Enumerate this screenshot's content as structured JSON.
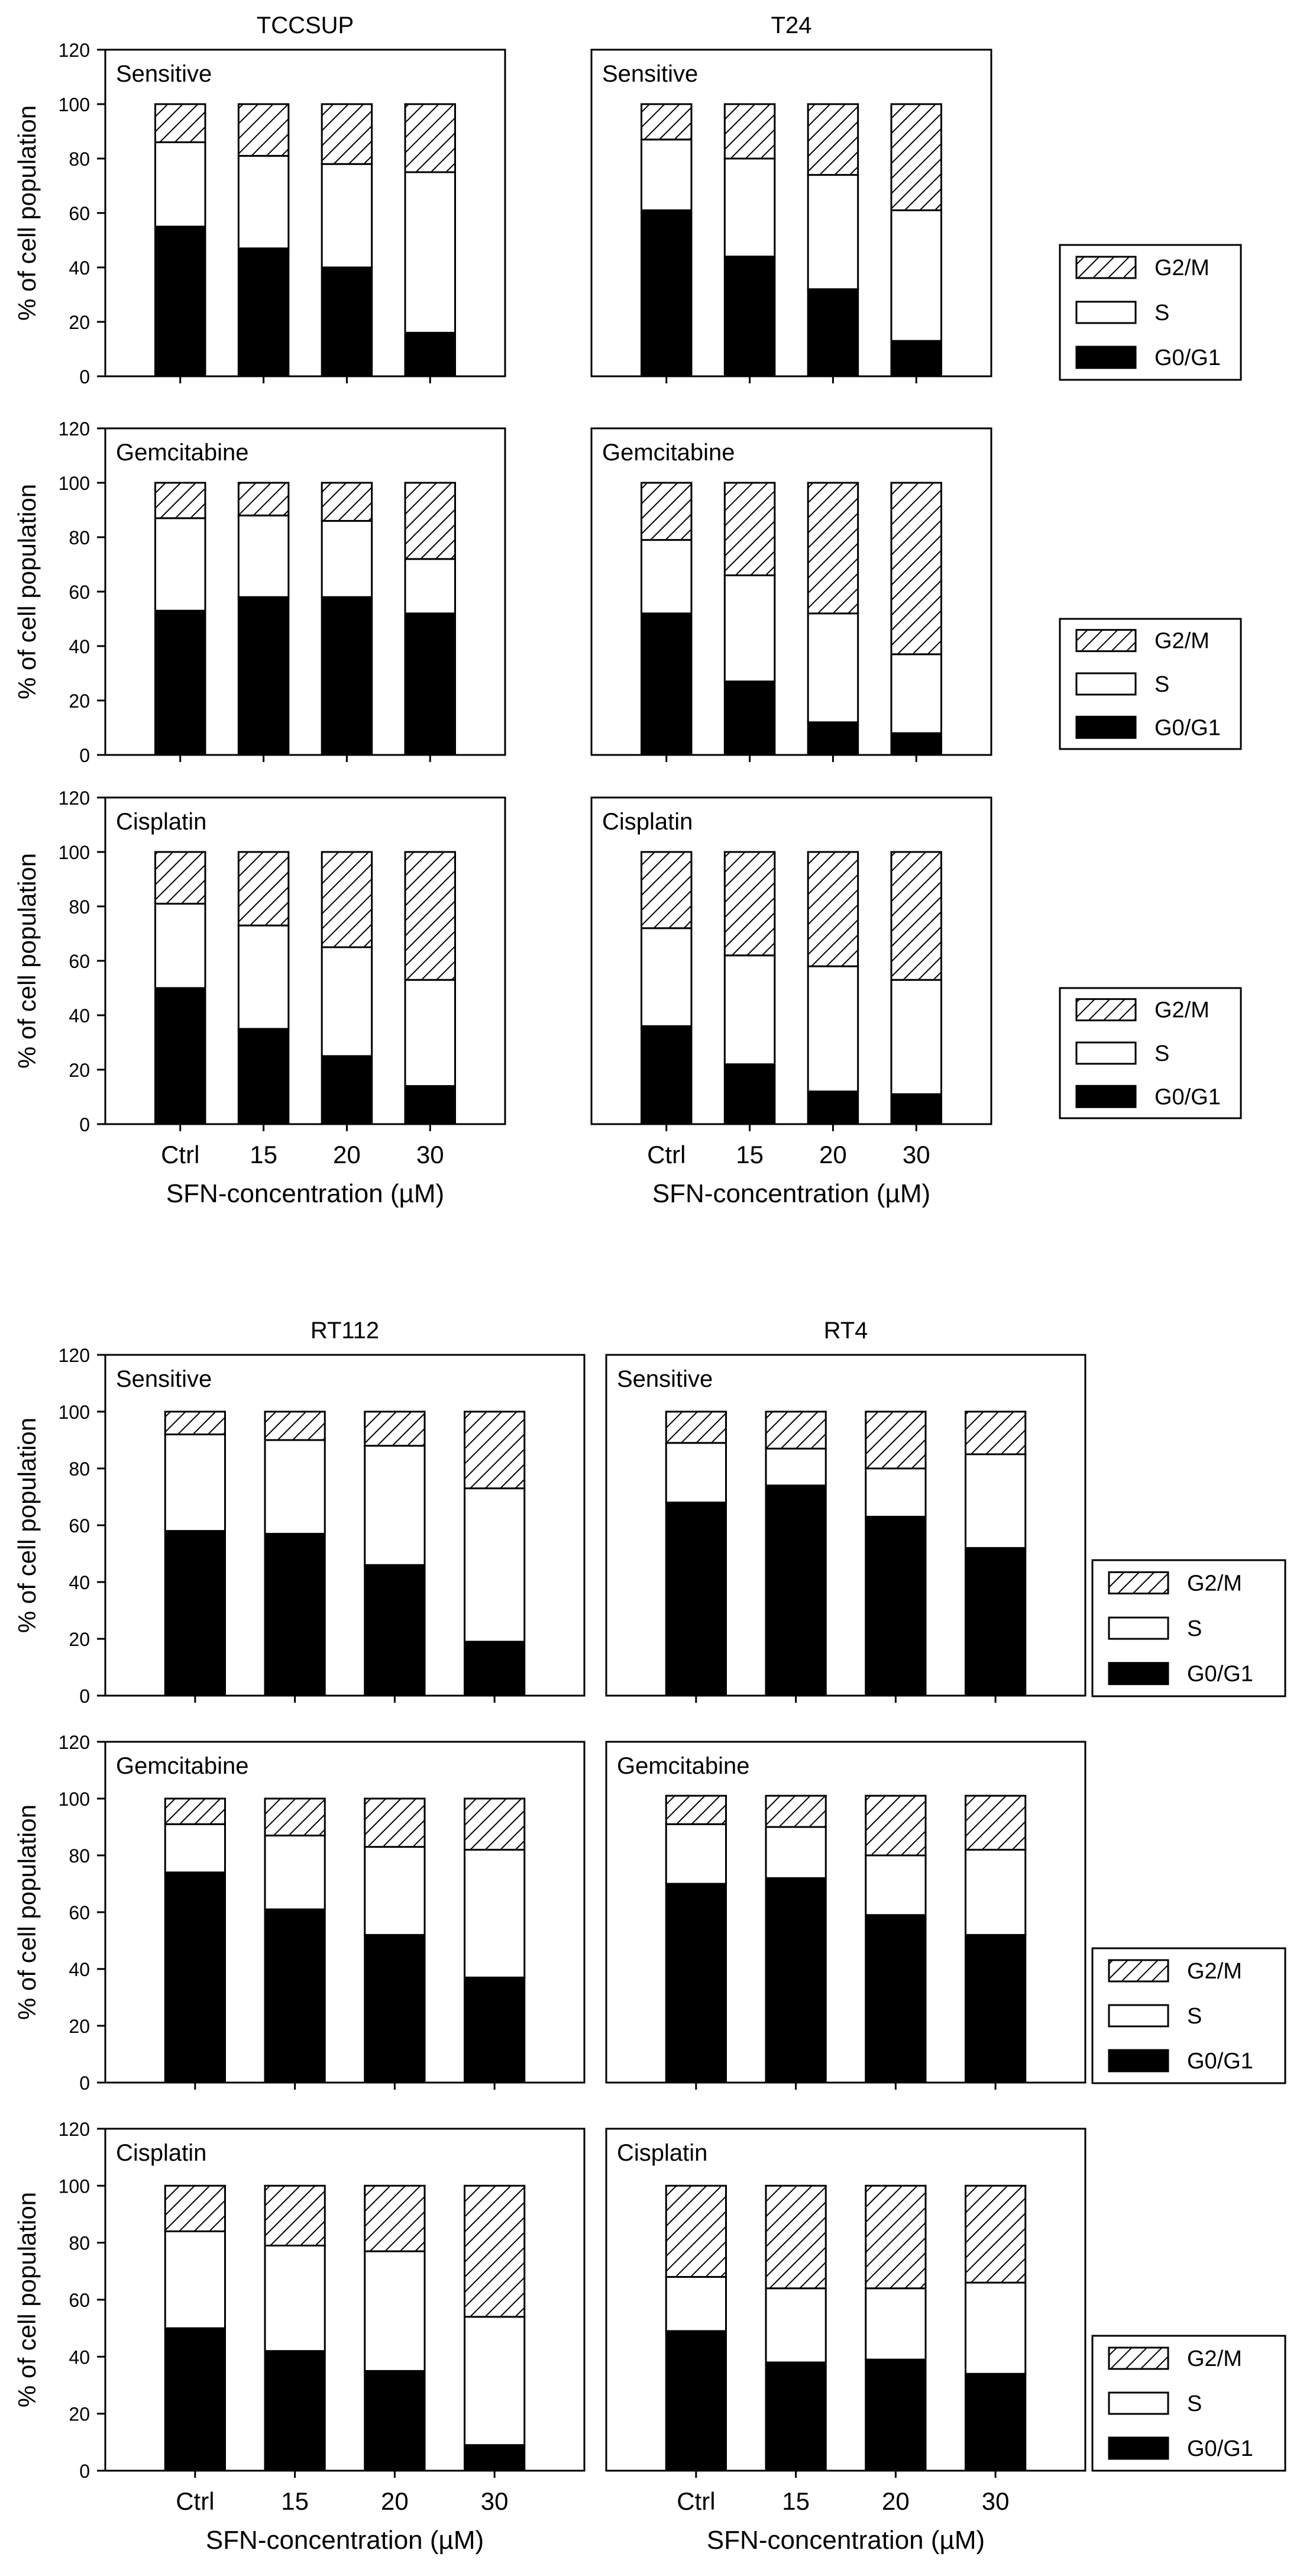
{
  "figure": {
    "legend_labels": [
      "G2/M",
      "S",
      "G0/G1"
    ],
    "colors": {
      "g0g1": "#000000",
      "s": "#ffffff",
      "g2m_hatch": "#000000",
      "frame": "#000000"
    }
  },
  "chart_data": [
    {
      "type": "bar",
      "stacked": true,
      "group": "top",
      "column_title": "TCCSUP",
      "panel_label": "Sensitive",
      "categories": [
        "Ctrl",
        "15",
        "20",
        "30"
      ],
      "ylabel": "% of cell population",
      "xlabel": "",
      "ylim": [
        0,
        120
      ],
      "yticks": [
        0,
        20,
        40,
        60,
        80,
        100,
        120
      ],
      "series": [
        {
          "name": "G0/G1",
          "values": [
            55,
            47,
            40,
            16
          ]
        },
        {
          "name": "S",
          "values": [
            31,
            34,
            38,
            59
          ]
        },
        {
          "name": "G2/M",
          "values": [
            14,
            19,
            22,
            25
          ]
        }
      ]
    },
    {
      "type": "bar",
      "stacked": true,
      "group": "top",
      "column_title": "T24",
      "panel_label": "Sensitive",
      "categories": [
        "Ctrl",
        "15",
        "20",
        "30"
      ],
      "ylabel": "",
      "xlabel": "",
      "ylim": [
        0,
        120
      ],
      "yticks": [],
      "series": [
        {
          "name": "G0/G1",
          "values": [
            61,
            44,
            32,
            13
          ]
        },
        {
          "name": "S",
          "values": [
            26,
            36,
            42,
            48
          ]
        },
        {
          "name": "G2/M",
          "values": [
            13,
            20,
            26,
            39
          ]
        }
      ]
    },
    {
      "type": "bar",
      "stacked": true,
      "group": "top",
      "column_title": "",
      "panel_label": "Gemcitabine",
      "categories": [
        "Ctrl",
        "15",
        "20",
        "30"
      ],
      "ylabel": "% of cell population",
      "xlabel": "",
      "ylim": [
        0,
        120
      ],
      "yticks": [
        0,
        20,
        40,
        60,
        80,
        100,
        120
      ],
      "series": [
        {
          "name": "G0/G1",
          "values": [
            53,
            58,
            58,
            52
          ]
        },
        {
          "name": "S",
          "values": [
            34,
            30,
            28,
            20
          ]
        },
        {
          "name": "G2/M",
          "values": [
            13,
            12,
            14,
            28
          ]
        }
      ]
    },
    {
      "type": "bar",
      "stacked": true,
      "group": "top",
      "column_title": "",
      "panel_label": "Gemcitabine",
      "categories": [
        "Ctrl",
        "15",
        "20",
        "30"
      ],
      "ylabel": "",
      "xlabel": "",
      "ylim": [
        0,
        120
      ],
      "yticks": [],
      "series": [
        {
          "name": "G0/G1",
          "values": [
            52,
            27,
            12,
            8
          ]
        },
        {
          "name": "S",
          "values": [
            27,
            39,
            40,
            29
          ]
        },
        {
          "name": "G2/M",
          "values": [
            21,
            34,
            48,
            63
          ]
        }
      ]
    },
    {
      "type": "bar",
      "stacked": true,
      "group": "top",
      "column_title": "",
      "panel_label": "Cisplatin",
      "categories": [
        "Ctrl",
        "15",
        "20",
        "30"
      ],
      "ylabel": "% of cell population",
      "xlabel": "SFN-concentration (µM)",
      "ylim": [
        0,
        120
      ],
      "yticks": [
        0,
        20,
        40,
        60,
        80,
        100,
        120
      ],
      "series": [
        {
          "name": "G0/G1",
          "values": [
            50,
            35,
            25,
            14
          ]
        },
        {
          "name": "S",
          "values": [
            31,
            38,
            40,
            39
          ]
        },
        {
          "name": "G2/M",
          "values": [
            19,
            27,
            35,
            47
          ]
        }
      ]
    },
    {
      "type": "bar",
      "stacked": true,
      "group": "top",
      "column_title": "",
      "panel_label": "Cisplatin",
      "categories": [
        "Ctrl",
        "15",
        "20",
        "30"
      ],
      "ylabel": "",
      "xlabel": "SFN-concentration (µM)",
      "ylim": [
        0,
        120
      ],
      "yticks": [],
      "series": [
        {
          "name": "G0/G1",
          "values": [
            36,
            22,
            12,
            11
          ]
        },
        {
          "name": "S",
          "values": [
            36,
            40,
            46,
            42
          ]
        },
        {
          "name": "G2/M",
          "values": [
            28,
            38,
            42,
            47
          ]
        }
      ]
    },
    {
      "type": "bar",
      "stacked": true,
      "group": "bottom",
      "column_title": "RT112",
      "panel_label": "Sensitive",
      "categories": [
        "Ctrl",
        "15",
        "20",
        "30"
      ],
      "ylabel": "% of cell population",
      "xlabel": "",
      "ylim": [
        0,
        120
      ],
      "yticks": [
        0,
        20,
        40,
        60,
        80,
        100,
        120
      ],
      "series": [
        {
          "name": "G0/G1",
          "values": [
            58,
            57,
            46,
            19
          ]
        },
        {
          "name": "S",
          "values": [
            34,
            33,
            42,
            54
          ]
        },
        {
          "name": "G2/M",
          "values": [
            8,
            10,
            12,
            27
          ]
        }
      ]
    },
    {
      "type": "bar",
      "stacked": true,
      "group": "bottom",
      "column_title": "RT4",
      "panel_label": "Sensitive",
      "categories": [
        "Ctrl",
        "15",
        "20",
        "30"
      ],
      "ylabel": "",
      "xlabel": "",
      "ylim": [
        0,
        120
      ],
      "yticks": [],
      "series": [
        {
          "name": "G0/G1",
          "values": [
            68,
            74,
            63,
            52
          ]
        },
        {
          "name": "S",
          "values": [
            21,
            13,
            17,
            33
          ]
        },
        {
          "name": "G2/M",
          "values": [
            11,
            13,
            20,
            15
          ]
        }
      ]
    },
    {
      "type": "bar",
      "stacked": true,
      "group": "bottom",
      "column_title": "",
      "panel_label": "Gemcitabine",
      "categories": [
        "Ctrl",
        "15",
        "20",
        "30"
      ],
      "ylabel": "% of cell population",
      "xlabel": "",
      "ylim": [
        0,
        120
      ],
      "yticks": [
        0,
        20,
        40,
        60,
        80,
        100,
        120
      ],
      "series": [
        {
          "name": "G0/G1",
          "values": [
            74,
            61,
            52,
            37
          ]
        },
        {
          "name": "S",
          "values": [
            17,
            26,
            31,
            45
          ]
        },
        {
          "name": "G2/M",
          "values": [
            9,
            13,
            17,
            18
          ]
        }
      ]
    },
    {
      "type": "bar",
      "stacked": true,
      "group": "bottom",
      "column_title": "",
      "panel_label": "Gemcitabine",
      "categories": [
        "Ctrl",
        "15",
        "20",
        "30"
      ],
      "ylabel": "",
      "xlabel": "",
      "ylim": [
        0,
        120
      ],
      "yticks": [],
      "series": [
        {
          "name": "G0/G1",
          "values": [
            70,
            72,
            59,
            52
          ]
        },
        {
          "name": "S",
          "values": [
            21,
            18,
            21,
            30
          ]
        },
        {
          "name": "G2/M",
          "values": [
            10,
            11,
            21,
            19
          ]
        }
      ]
    },
    {
      "type": "bar",
      "stacked": true,
      "group": "bottom",
      "column_title": "",
      "panel_label": "Cisplatin",
      "categories": [
        "Ctrl",
        "15",
        "20",
        "30"
      ],
      "ylabel": "% of cell population",
      "xlabel": "SFN-concentration (µM)",
      "ylim": [
        0,
        120
      ],
      "yticks": [
        0,
        20,
        40,
        60,
        80,
        100,
        120
      ],
      "series": [
        {
          "name": "G0/G1",
          "values": [
            50,
            42,
            35,
            9
          ]
        },
        {
          "name": "S",
          "values": [
            34,
            37,
            42,
            45
          ]
        },
        {
          "name": "G2/M",
          "values": [
            16,
            21,
            23,
            46
          ]
        }
      ]
    },
    {
      "type": "bar",
      "stacked": true,
      "group": "bottom",
      "column_title": "",
      "panel_label": "Cisplatin",
      "categories": [
        "Ctrl",
        "15",
        "20",
        "30"
      ],
      "ylabel": "",
      "xlabel": "SFN-concentration (µM)",
      "ylim": [
        0,
        120
      ],
      "yticks": [],
      "series": [
        {
          "name": "G0/G1",
          "values": [
            49,
            38,
            39,
            34
          ]
        },
        {
          "name": "S",
          "values": [
            19,
            26,
            25,
            32
          ]
        },
        {
          "name": "G2/M",
          "values": [
            32,
            36,
            36,
            34
          ]
        }
      ]
    }
  ]
}
